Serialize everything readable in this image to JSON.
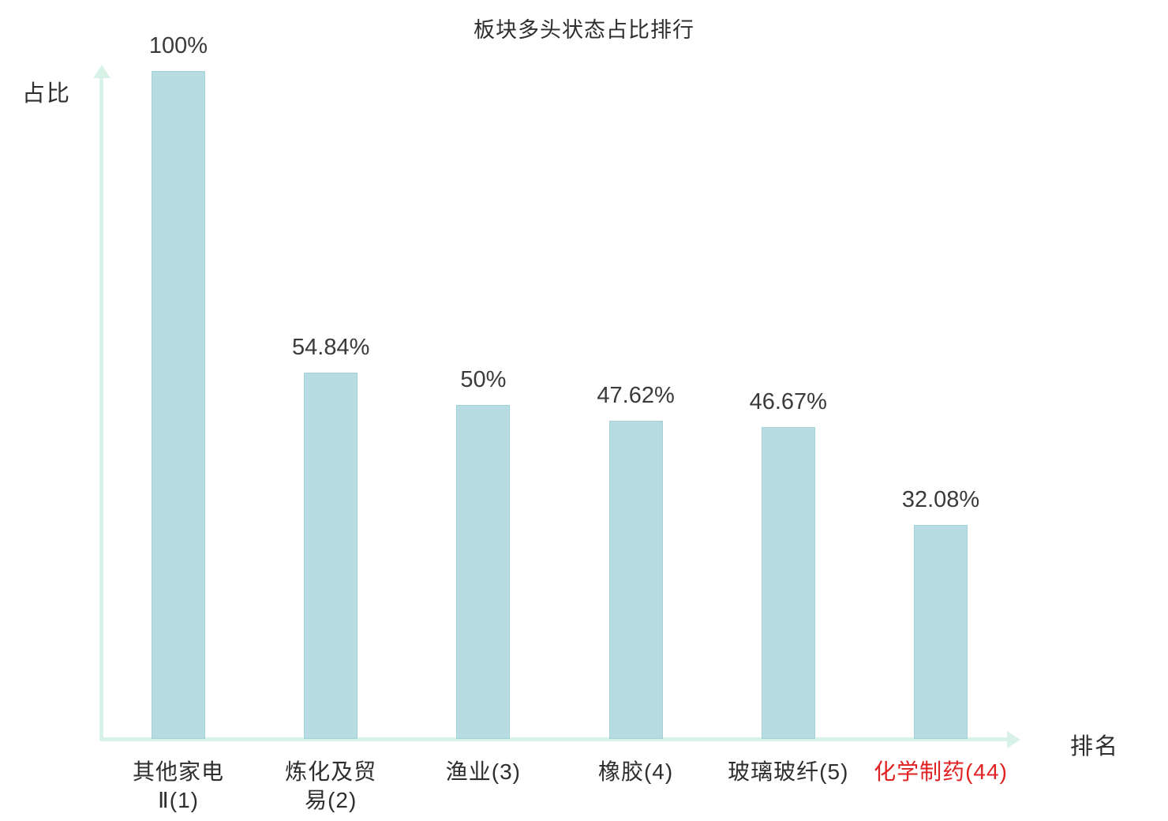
{
  "chart_data": {
    "type": "bar",
    "title": "板块多头状态占比排行",
    "xlabel": "排名",
    "ylabel": "占比",
    "categories": [
      "其他家电\nⅡ(1)",
      "炼化及贸\n易(2)",
      "渔业(3)",
      "橡胶(4)",
      "玻璃玻纤(5)",
      "化学制药(44)"
    ],
    "values": [
      100,
      54.84,
      50,
      47.62,
      46.67,
      32.08
    ],
    "value_labels": [
      "100%",
      "54.84%",
      "50%",
      "47.62%",
      "46.67%",
      "32.08%"
    ],
    "highlight_index": 5,
    "ylim": [
      0,
      100
    ],
    "grid": false,
    "legend": "none",
    "colors": {
      "bar_fill": "#b7dde2",
      "bar_border": "#a3d1d7",
      "axis": "#d9f2e8",
      "label_text": "#3a3a3a",
      "highlight_text": "#e02121"
    }
  }
}
